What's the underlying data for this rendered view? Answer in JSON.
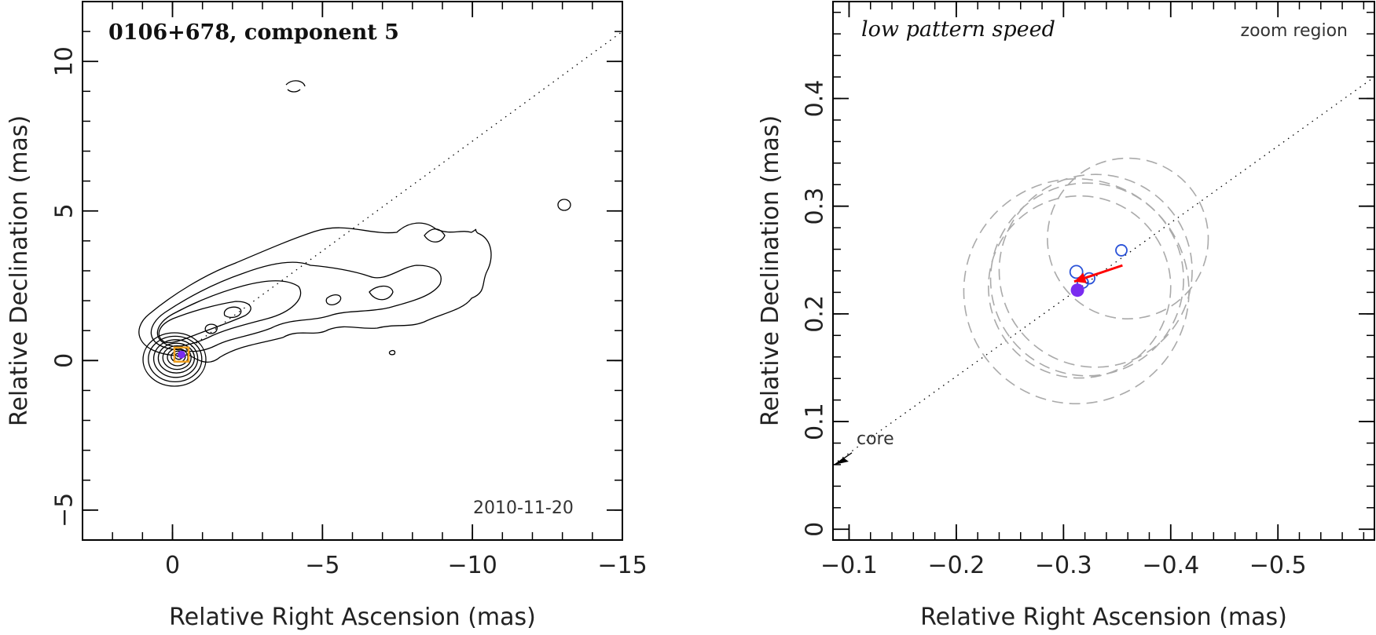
{
  "chart_data": [
    {
      "type": "scatter",
      "title": "0106+678, component 5",
      "date": "2010-11-20",
      "xlabel": "Relative Right Ascension (mas)",
      "ylabel": "Relative Declination (mas)",
      "xlim": [
        3,
        -15
      ],
      "ylim": [
        -6,
        12
      ],
      "x_ticks": [
        0,
        -5,
        -10,
        -15
      ],
      "x_tick_labels": [
        "0",
        "−5",
        "−10",
        "−15"
      ],
      "y_ticks": [
        -5,
        0,
        5,
        10
      ],
      "y_tick_labels": [
        "−5",
        "0",
        "5",
        "10"
      ],
      "component_position": {
        "x": -0.3,
        "y": 0.2
      },
      "jet_axis": {
        "x": [
          0,
          -15
        ],
        "y": [
          0,
          11
        ]
      },
      "colors": {
        "component": "#7a2cf0",
        "box": "#f0a020",
        "contour": "#000000"
      }
    },
    {
      "type": "scatter",
      "title": "low pattern speed",
      "region_label": "zoom region",
      "core_label": "core",
      "xlabel": "Relative Right Ascension (mas)",
      "ylabel": "Relative Declination (mas)",
      "xlim": [
        -0.085,
        -0.59
      ],
      "ylim": [
        -0.01,
        0.49
      ],
      "x_ticks": [
        -0.1,
        -0.2,
        -0.3,
        -0.4,
        -0.5
      ],
      "x_tick_labels": [
        "−0.1",
        "−0.2",
        "−0.3",
        "−0.4",
        "−0.5"
      ],
      "y_ticks": [
        0,
        0.1,
        0.2,
        0.3,
        0.4
      ],
      "y_tick_labels": [
        "0",
        "0.1",
        "0.2",
        "0.3",
        "0.4"
      ],
      "series": [
        {
          "name": "",
          "x": [
            -0.312,
            -0.324,
            -0.318,
            -0.354
          ],
          "y": [
            0.239,
            0.233,
            0.229,
            0.259
          ]
        },
        {
          "name": "",
          "x": [
            -0.313
          ],
          "y": [
            0.222
          ]
        }
      ],
      "uncertainty_circles": [
        {
          "x": -0.312,
          "y": 0.221,
          "r": 0.105
        },
        {
          "x": -0.322,
          "y": 0.232,
          "r": 0.09
        },
        {
          "x": -0.33,
          "y": 0.24,
          "r": 0.09
        },
        {
          "x": -0.36,
          "y": 0.27,
          "r": 0.075
        },
        {
          "x": -0.315,
          "y": 0.225,
          "r": 0.085
        }
      ],
      "motion_arrow": {
        "from_x": -0.355,
        "from_y": 0.245,
        "to_x": -0.31,
        "to_y": 0.23
      },
      "colors": {
        "open_marker": "#2a52d8",
        "filled_marker": "#7a2cf0",
        "arrow": "#ff0000",
        "circles": "#aaaaaa"
      }
    }
  ]
}
